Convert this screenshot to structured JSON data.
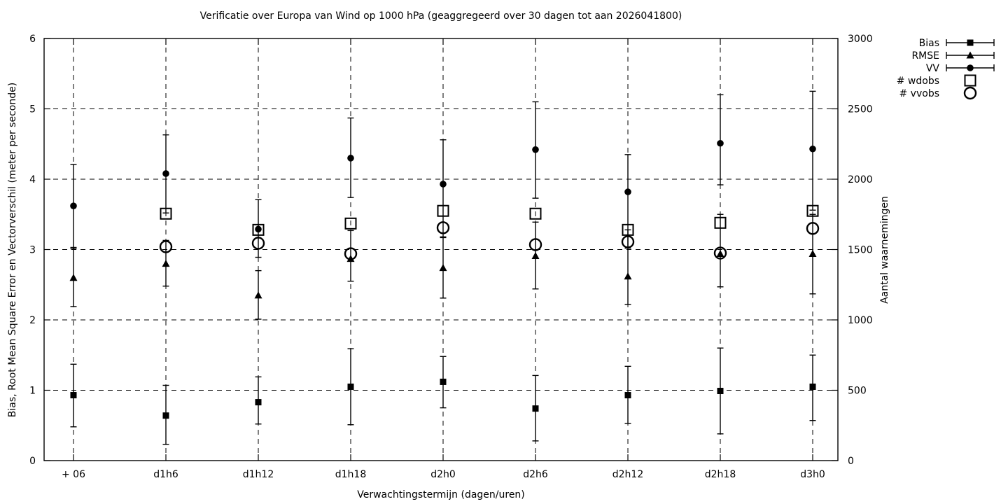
{
  "colors": {
    "foreground": "#000000",
    "background": "#ffffff"
  },
  "chart_data": {
    "type": "scatter",
    "title": "Verificatie over Europa van Wind op 1000 hPa (geaggregeerd over 30 dagen tot aan 2026041800)",
    "xlabel": "Verwachtingstermijn (dagen/uren)",
    "ylabel_left": "Bias, Root Mean Square Error en Vectorverschil (meter per seconde)",
    "ylabel_right": "Aantal waarnemingen",
    "categories": [
      "+ 06",
      "d1h6",
      "d1h12",
      "d1h18",
      "d2h0",
      "d2h6",
      "d2h12",
      "d2h18",
      "d3h0"
    ],
    "ylim_left": [
      0,
      6
    ],
    "ylim_right": [
      0,
      3000
    ],
    "yticks_left": [
      0,
      1,
      2,
      3,
      4,
      5,
      6
    ],
    "yticks_right": [
      0,
      500,
      1000,
      1500,
      2000,
      2500,
      3000
    ],
    "grid": true,
    "grid_style": "dashed",
    "legend_position": "top-right-outside",
    "series": [
      {
        "name": "Bias",
        "marker": "filled-square",
        "axis": "left",
        "has_error_bars": true,
        "values": [
          0.93,
          0.64,
          0.83,
          1.05,
          1.12,
          0.74,
          0.93,
          0.99,
          1.05
        ],
        "err_low": [
          0.48,
          0.23,
          0.52,
          0.51,
          0.75,
          0.28,
          0.53,
          0.38,
          0.57
        ],
        "err_high": [
          1.37,
          1.07,
          1.19,
          1.59,
          1.48,
          1.21,
          1.34,
          1.6,
          1.5
        ]
      },
      {
        "name": "RMSE",
        "marker": "filled-triangle",
        "axis": "left",
        "has_error_bars": true,
        "values": [
          2.6,
          2.8,
          2.35,
          2.87,
          2.74,
          2.91,
          2.62,
          2.94,
          2.94
        ],
        "err_low": [
          2.19,
          2.48,
          2.01,
          2.55,
          2.31,
          2.44,
          2.22,
          2.47,
          2.37
        ],
        "err_high": [
          3.03,
          3.13,
          2.7,
          3.27,
          3.18,
          3.39,
          3.28,
          3.5,
          3.5
        ]
      },
      {
        "name": "VV",
        "marker": "filled-circle",
        "axis": "left",
        "has_error_bars": true,
        "values": [
          3.62,
          4.08,
          3.29,
          4.3,
          3.93,
          4.42,
          3.82,
          4.51,
          4.43
        ],
        "err_low": [
          3.01,
          3.52,
          2.89,
          3.74,
          3.17,
          3.73,
          3.02,
          3.92,
          3.56
        ],
        "err_high": [
          4.21,
          4.63,
          3.71,
          4.87,
          4.56,
          5.1,
          4.35,
          5.2,
          5.25
        ]
      },
      {
        "name": "# wdobs",
        "marker": "open-square",
        "axis": "right",
        "has_error_bars": false,
        "values": [
          null,
          1755,
          1640,
          1685,
          1775,
          1755,
          1640,
          1690,
          1775
        ]
      },
      {
        "name": "# vvobs",
        "marker": "open-circle",
        "axis": "right",
        "has_error_bars": false,
        "values": [
          null,
          1520,
          1545,
          1470,
          1655,
          1535,
          1555,
          1475,
          1650
        ]
      }
    ]
  }
}
